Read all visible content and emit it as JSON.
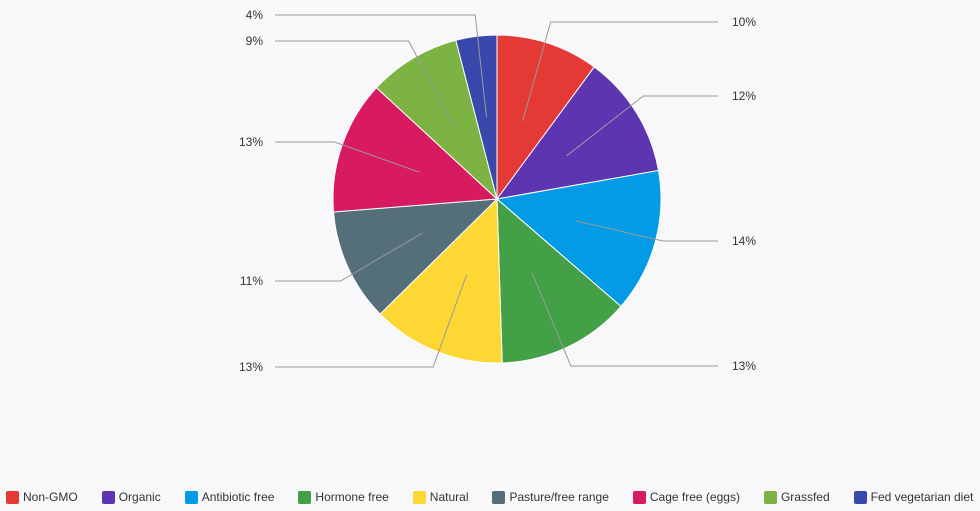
{
  "chart_data": {
    "type": "pie",
    "categories": [
      "Non-GMO",
      "Organic",
      "Antibiotic free",
      "Hormone free",
      "Natural",
      "Pasture/free range",
      "Cage free (eggs)",
      "Grassfed",
      "Fed vegetarian diet"
    ],
    "values": [
      10,
      12,
      14,
      13,
      13,
      11,
      13,
      9,
      4
    ],
    "value_labels": [
      "10%",
      "12%",
      "14%",
      "13%",
      "13%",
      "11%",
      "13%",
      "9%",
      "4%"
    ],
    "colors": [
      "#e53935",
      "#5e35b1",
      "#039be5",
      "#43a047",
      "#fdd835",
      "#546e7a",
      "#d81b60",
      "#7cb342",
      "#3949ab"
    ],
    "legend_placement": "bottom",
    "start_angle": "top, clockwise",
    "title": "",
    "xlabel": "",
    "ylabel": ""
  },
  "legend": {
    "items": [
      "Non-GMO",
      "Organic",
      "Antibiotic free",
      "Hormone free",
      "Natural",
      "Pasture/free range",
      "Cage free (eggs)",
      "Grassfed",
      "Fed vegetarian diet"
    ]
  }
}
